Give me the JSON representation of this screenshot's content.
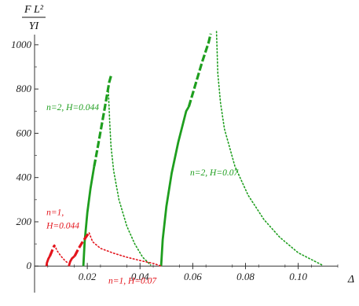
{
  "chart_data": {
    "type": "line",
    "title": "",
    "ylabel_top": "F L²",
    "ylabel_bottom": "YI",
    "xlabel": "Δ",
    "xlim": [
      0.0,
      0.115
    ],
    "ylim": [
      -120,
      1060
    ],
    "xticks": [
      0.02,
      0.04,
      0.06,
      0.08,
      0.1
    ],
    "xtick_labels": [
      "0.02",
      "0.04",
      "0.06",
      "0.08",
      "0.10"
    ],
    "yticks": [
      0,
      200,
      400,
      600,
      800,
      1000
    ],
    "ytick_labels": [
      "0",
      "200",
      "400",
      "600",
      "800",
      "1000"
    ],
    "grid": false,
    "colors": {
      "green": "#1e9e1e",
      "red": "#e3141c",
      "axis": "#333333"
    },
    "series": [
      {
        "color": "green",
        "style": "solid",
        "points": [
          [
            0.0185,
            0
          ],
          [
            0.019,
            110
          ],
          [
            0.02,
            240
          ],
          [
            0.0212,
            350
          ],
          [
            0.0226,
            450
          ]
        ]
      },
      {
        "color": "green",
        "style": "dashed",
        "points": [
          [
            0.0226,
            450
          ],
          [
            0.024,
            540
          ],
          [
            0.0255,
            640
          ],
          [
            0.027,
            740
          ],
          [
            0.0283,
            830
          ],
          [
            0.029,
            860
          ]
        ]
      },
      {
        "color": "green",
        "style": "dotted",
        "points": [
          [
            0.028,
            790
          ],
          [
            0.0285,
            650
          ],
          [
            0.029,
            540
          ],
          [
            0.03,
            430
          ],
          [
            0.032,
            300
          ],
          [
            0.035,
            180
          ],
          [
            0.038,
            100
          ],
          [
            0.041,
            40
          ],
          [
            0.044,
            5
          ]
        ]
      },
      {
        "color": "green",
        "style": "solid",
        "points": [
          [
            0.048,
            0
          ],
          [
            0.0486,
            120
          ],
          [
            0.05,
            270
          ],
          [
            0.052,
            420
          ],
          [
            0.0545,
            560
          ],
          [
            0.0575,
            700
          ],
          [
            0.0585,
            720
          ]
        ]
      },
      {
        "color": "green",
        "style": "dashed",
        "points": [
          [
            0.0585,
            720
          ],
          [
            0.061,
            820
          ],
          [
            0.0635,
            920
          ],
          [
            0.066,
            1010
          ],
          [
            0.0668,
            1050
          ]
        ]
      },
      {
        "color": "green",
        "style": "dotted",
        "points": [
          [
            0.069,
            1060
          ],
          [
            0.0695,
            870
          ],
          [
            0.0705,
            740
          ],
          [
            0.072,
            620
          ],
          [
            0.076,
            450
          ],
          [
            0.081,
            320
          ],
          [
            0.087,
            210
          ],
          [
            0.093,
            130
          ],
          [
            0.1,
            60
          ],
          [
            0.109,
            5
          ]
        ]
      },
      {
        "color": "red",
        "style": "solid",
        "points": [
          [
            0.0045,
            0
          ],
          [
            0.0047,
            15
          ],
          [
            0.0052,
            32
          ],
          [
            0.0058,
            45
          ]
        ]
      },
      {
        "color": "red",
        "style": "dashed",
        "points": [
          [
            0.0058,
            45
          ],
          [
            0.0065,
            65
          ],
          [
            0.0072,
            85
          ],
          [
            0.0076,
            95
          ]
        ]
      },
      {
        "color": "red",
        "style": "dotted",
        "points": [
          [
            0.0076,
            95
          ],
          [
            0.0085,
            70
          ],
          [
            0.01,
            45
          ],
          [
            0.0115,
            25
          ],
          [
            0.0125,
            15
          ]
        ]
      },
      {
        "color": "red",
        "style": "solid",
        "points": [
          [
            0.013,
            0
          ],
          [
            0.0135,
            20
          ],
          [
            0.0142,
            35
          ],
          [
            0.0152,
            45
          ]
        ]
      },
      {
        "color": "red",
        "style": "dashed",
        "points": [
          [
            0.0152,
            45
          ],
          [
            0.0165,
            75
          ],
          [
            0.018,
            105
          ],
          [
            0.02,
            140
          ],
          [
            0.0207,
            150
          ]
        ]
      },
      {
        "color": "red",
        "style": "dotted",
        "points": [
          [
            0.0207,
            150
          ],
          [
            0.022,
            110
          ],
          [
            0.025,
            80
          ],
          [
            0.03,
            58
          ],
          [
            0.035,
            40
          ],
          [
            0.04,
            25
          ],
          [
            0.045,
            12
          ],
          [
            0.048,
            0
          ]
        ]
      }
    ],
    "annotations": [
      {
        "text": "n=2, H=0.044",
        "color": "green",
        "x": 0.0045,
        "y": 705
      },
      {
        "text": "n=2, H=0.07",
        "color": "green",
        "x": 0.059,
        "y": 410
      },
      {
        "text": "n=1,",
        "color": "red",
        "x": 0.0045,
        "y": 230
      },
      {
        "text": "H=0.044",
        "color": "red",
        "x": 0.0045,
        "y": 170
      },
      {
        "text": "n=1, H=0.07",
        "color": "red",
        "x": 0.028,
        "y": -80
      }
    ]
  }
}
